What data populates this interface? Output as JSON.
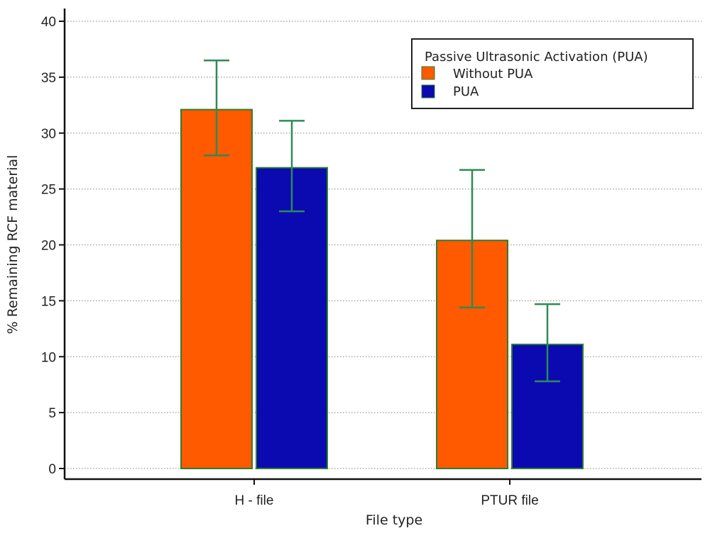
{
  "chart_data": {
    "type": "bar",
    "title": "",
    "xlabel": "File type",
    "ylabel": "% Remaining RCF material",
    "categories": [
      "H - file",
      "PTUR file"
    ],
    "ylim": [
      0,
      40
    ],
    "yticks": [
      0,
      5,
      10,
      15,
      20,
      25,
      30,
      35,
      40
    ],
    "grid": "horizontal-dotted",
    "legend": {
      "title": "Passive Ultrasonic Activation (PUA)",
      "placement": "top-right"
    },
    "series": [
      {
        "name": "Without PUA",
        "color": "#ff5a00",
        "values": [
          32.1,
          20.4
        ],
        "error_low": [
          28.0,
          14.4
        ],
        "error_high": [
          36.5,
          26.7
        ]
      },
      {
        "name": "PUA",
        "color": "#0a0ab0",
        "values": [
          26.9,
          11.1
        ],
        "error_low": [
          23.0,
          7.8
        ],
        "error_high": [
          31.1,
          14.7
        ]
      }
    ],
    "colors": {
      "bar_edge": "#2e7d32",
      "error_bar": "#2e8b57",
      "grid": "#9a9a9a",
      "axis": "#111111"
    }
  }
}
